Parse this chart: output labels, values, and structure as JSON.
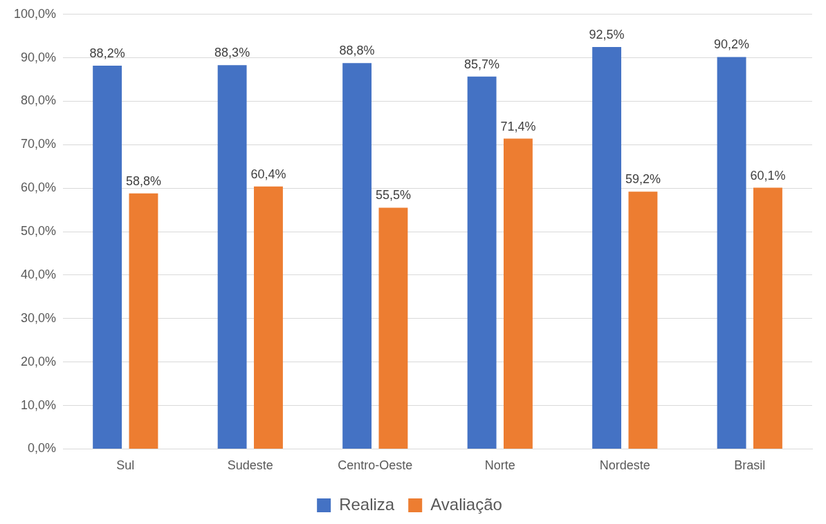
{
  "chart_data": {
    "type": "bar",
    "categories": [
      "Sul",
      "Sudeste",
      "Centro-Oeste",
      "Norte",
      "Nordeste",
      "Brasil"
    ],
    "series": [
      {
        "name": "Realiza",
        "color": "#4472c4",
        "values": [
          88.2,
          88.3,
          88.8,
          85.7,
          92.5,
          90.2
        ],
        "value_labels": [
          "88,2%",
          "88,3%",
          "88,8%",
          "85,7%",
          "92,5%",
          "90,2%"
        ]
      },
      {
        "name": "Avaliação",
        "color": "#ed7d31",
        "values": [
          58.8,
          60.4,
          55.5,
          71.4,
          59.2,
          60.1
        ],
        "value_labels": [
          "58,8%",
          "60,4%",
          "55,5%",
          "71,4%",
          "59,2%",
          "60,1%"
        ]
      }
    ],
    "ylim": [
      0,
      100
    ],
    "yticks": [
      {
        "value": 0,
        "label": "0,0%"
      },
      {
        "value": 10,
        "label": "10,0%"
      },
      {
        "value": 20,
        "label": "20,0%"
      },
      {
        "value": 30,
        "label": "30,0%"
      },
      {
        "value": 40,
        "label": "40,0%"
      },
      {
        "value": 50,
        "label": "50,0%"
      },
      {
        "value": 60,
        "label": "60,0%"
      },
      {
        "value": 70,
        "label": "70,0%"
      },
      {
        "value": 80,
        "label": "80,0%"
      },
      {
        "value": 90,
        "label": "90,0%"
      },
      {
        "value": 100,
        "label": "100,0%"
      }
    ],
    "grid": "y",
    "legend": "bottom"
  }
}
